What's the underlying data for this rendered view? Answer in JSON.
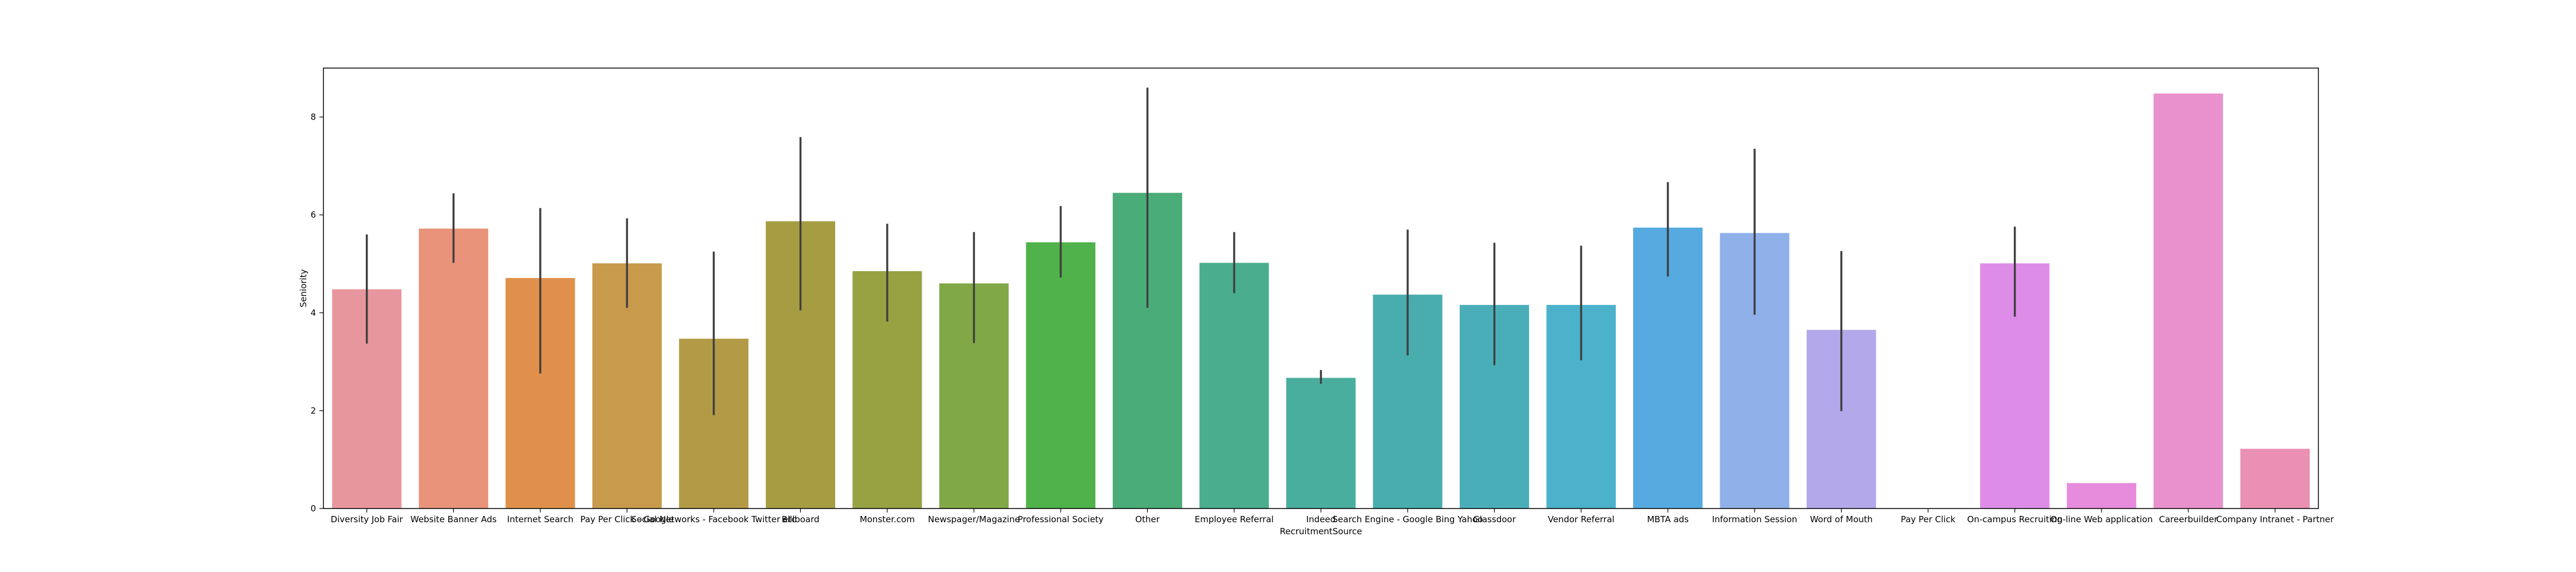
{
  "chart_data": {
    "type": "bar",
    "xlabel": "RecruitmentSource",
    "ylabel": "Seniority",
    "ylim": [
      0,
      9.0
    ],
    "yticks": [
      0,
      2,
      4,
      6,
      8
    ],
    "grid": false,
    "categories": [
      "Diversity Job Fair",
      "Website Banner Ads",
      "Internet Search",
      "Pay Per Click - Google",
      "Social Networks - Facebook Twitter etc",
      "Billboard",
      "Monster.com",
      "Newspager/Magazine",
      "Professional Society",
      "Other",
      "Employee Referral",
      "Indeed",
      "Search Engine - Google Bing Yahoo",
      "Glassdoor",
      "Vendor Referral",
      "MBTA ads",
      "Information Session",
      "Word of Mouth",
      "Pay Per Click",
      "On-campus Recruiting",
      "On-line Web application",
      "Careerbuilder",
      "Company Intranet - Partner"
    ],
    "values": [
      4.48,
      5.72,
      4.71,
      5.01,
      3.47,
      5.87,
      4.85,
      4.6,
      5.44,
      6.45,
      5.02,
      2.67,
      4.37,
      4.16,
      4.16,
      5.74,
      5.63,
      3.65,
      0.0,
      5.01,
      0.52,
      8.48,
      1.22
    ],
    "error_low": [
      3.37,
      5.02,
      2.76,
      4.1,
      1.91,
      4.05,
      3.82,
      3.38,
      4.72,
      4.1,
      4.4,
      2.55,
      3.13,
      2.93,
      3.03,
      4.74,
      3.96,
      1.99,
      null,
      3.92,
      null,
      null,
      null
    ],
    "error_high": [
      5.6,
      6.44,
      6.14,
      5.93,
      5.25,
      7.59,
      5.82,
      5.65,
      6.18,
      8.6,
      5.65,
      2.83,
      5.7,
      5.43,
      5.37,
      6.67,
      7.35,
      5.26,
      null,
      5.76,
      null,
      null,
      null
    ],
    "colors": [
      "#e8969d",
      "#e8937a",
      "#e0904a",
      "#c89a4c",
      "#b39a46",
      "#a69d43",
      "#97a243",
      "#80a847",
      "#4fb24b",
      "#4aac78",
      "#4aad8e",
      "#4aae9e",
      "#48adac",
      "#4aaeb9",
      "#4cb1cb",
      "#56aae0",
      "#8fb0e8",
      "#b2a8ea",
      "#cb9bea",
      "#dd8de8",
      "#e78bdc",
      "#e991cc",
      "#e990b3"
    ],
    "error_color": "#3f3f3f"
  }
}
